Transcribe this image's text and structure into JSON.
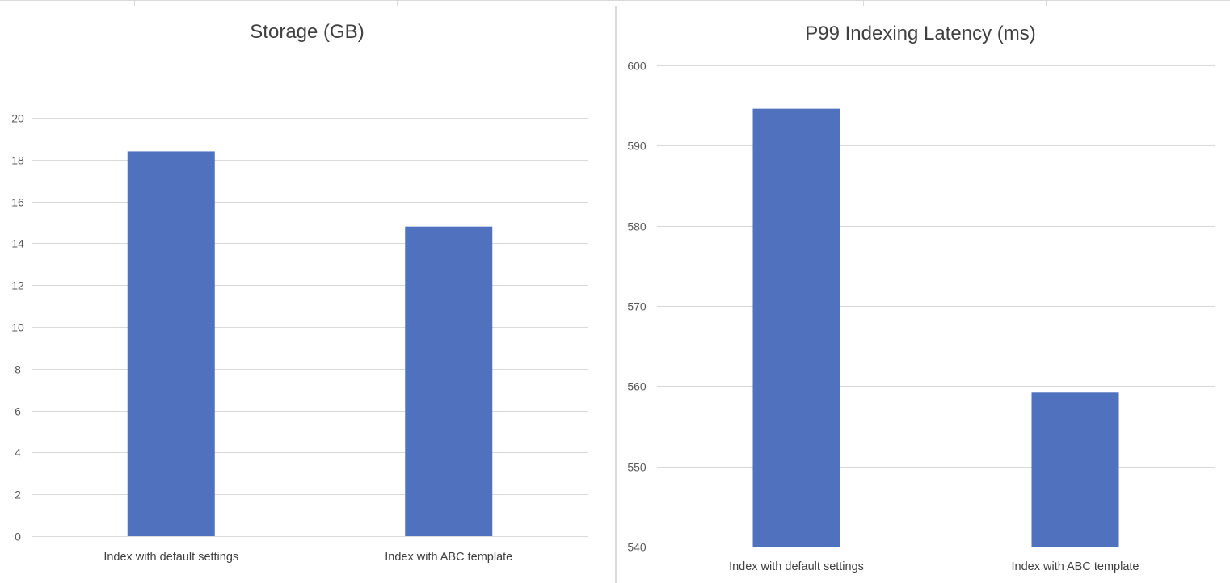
{
  "chart_data": [
    {
      "type": "bar",
      "title": "Storage (GB)",
      "categories": [
        "Index with default settings",
        "Index with ABC template"
      ],
      "series": [
        {
          "values": [
            18.4,
            14.8
          ]
        }
      ],
      "ylim": [
        0,
        20
      ],
      "yticks": [
        0,
        2,
        4,
        6,
        8,
        10,
        12,
        14,
        16,
        18,
        20
      ],
      "grid": true,
      "legend": "none",
      "color": "#4f71be"
    },
    {
      "type": "bar",
      "title": "P99 Indexing Latency (ms)",
      "categories": [
        "Index with default settings",
        "Index with ABC template"
      ],
      "series": [
        {
          "values": [
            594.6,
            559.2
          ]
        }
      ],
      "ylim": [
        540,
        600
      ],
      "yticks": [
        540,
        550,
        560,
        570,
        580,
        590,
        600
      ],
      "grid": true,
      "legend": "none",
      "color": "#4f71be"
    }
  ]
}
